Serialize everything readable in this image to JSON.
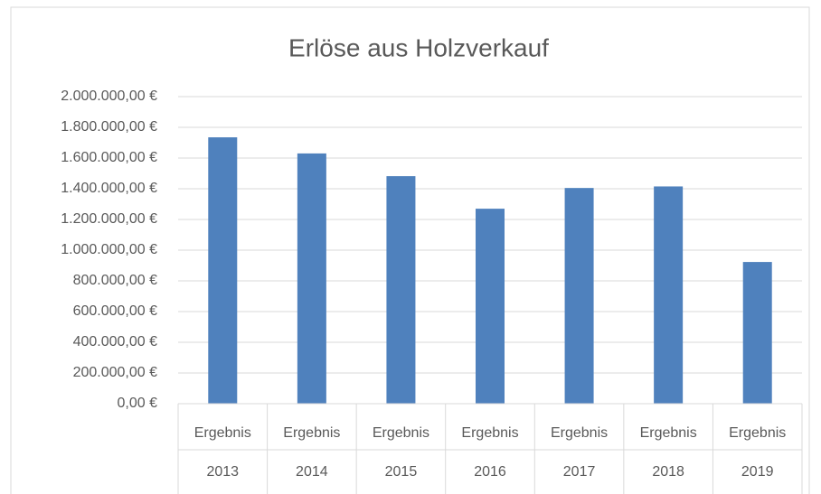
{
  "chart_data": {
    "type": "bar",
    "title": "Erlöse aus Holzverkauf",
    "categories": [
      [
        "Ergebnis",
        "2013"
      ],
      [
        "Ergebnis",
        "2014"
      ],
      [
        "Ergebnis",
        "2015"
      ],
      [
        "Ergebnis",
        "2016"
      ],
      [
        "Ergebnis",
        "2017"
      ],
      [
        "Ergebnis",
        "2018"
      ],
      [
        "Ergebnis",
        "2019"
      ]
    ],
    "values": [
      1735000,
      1630000,
      1482000,
      1270000,
      1405000,
      1415000,
      923000
    ],
    "color": "#4f81bd",
    "ylim": [
      0,
      2000000
    ],
    "yticks": [
      {
        "value": 0,
        "label": "0,00 €"
      },
      {
        "value": 200000,
        "label": "200.000,00 €"
      },
      {
        "value": 400000,
        "label": "400.000,00 €"
      },
      {
        "value": 600000,
        "label": "600.000,00 €"
      },
      {
        "value": 800000,
        "label": "800.000,00 €"
      },
      {
        "value": 1000000,
        "label": "1.000.000,00 €"
      },
      {
        "value": 1200000,
        "label": "1.200.000,00 €"
      },
      {
        "value": 1400000,
        "label": "1.400.000,00 €"
      },
      {
        "value": 1600000,
        "label": "1.600.000,00 €"
      },
      {
        "value": 1800000,
        "label": "1.800.000,00 €"
      },
      {
        "value": 2000000,
        "label": "2.000.000,00 €"
      }
    ],
    "grid": true
  }
}
